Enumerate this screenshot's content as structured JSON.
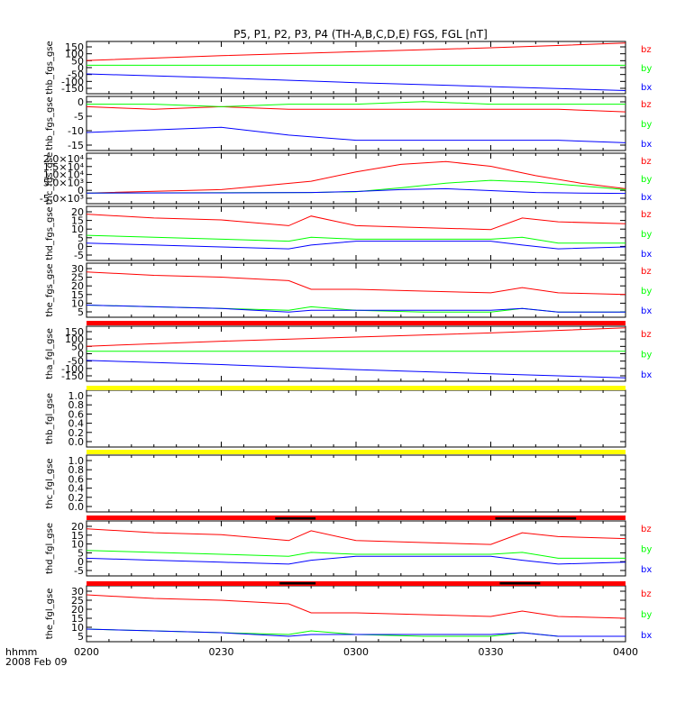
{
  "title": "P5, P1, P2, P3, P4 (TH-A,B,C,D,E) FGS, FGL [nT]",
  "footer": {
    "line1": "hhmm",
    "line2": "2008 Feb 09"
  },
  "x_ticks": [
    "0200",
    "0230",
    "0300",
    "0330",
    "0400"
  ],
  "components": [
    {
      "label": "bz",
      "color": "#ff0000"
    },
    {
      "label": "by",
      "color": "#00ff00"
    },
    {
      "label": "bx",
      "color": "#0000ff"
    }
  ],
  "colors": {
    "bx": "#0000ff",
    "by": "#00ff00",
    "bz": "#ff0000",
    "flag_red": "#ff0000",
    "flag_yellow": "#ffff00",
    "bar": "#000000"
  },
  "panels": [
    {
      "ylabel": "thb_fgs_gse",
      "yticks": [
        "150",
        "100",
        "50",
        "0",
        "-50",
        "-100",
        "-150"
      ]
    },
    {
      "ylabel": "thb_fgs_gse",
      "yticks": [
        "0",
        "-5",
        "-10",
        "-15"
      ]
    },
    {
      "ylabel": "thc_fgs_gse",
      "yticks": [
        "2.0×10⁴",
        "1.5×10⁴",
        "1.0×10⁴",
        "5.0×10³",
        "0",
        "-5.0×10³"
      ]
    },
    {
      "ylabel": "thd_fgs_gse",
      "yticks": [
        "20",
        "15",
        "10",
        "5",
        "0",
        "-5"
      ]
    },
    {
      "ylabel": "the_fgs_gse",
      "yticks": [
        "30",
        "25",
        "20",
        "15",
        "10",
        "5"
      ]
    },
    {
      "ylabel": "tha_fgl_gse",
      "yticks": [
        "150",
        "100",
        "50",
        "0",
        "-50",
        "-100",
        "-150"
      ]
    },
    {
      "ylabel": "thb_fgl_gse",
      "yticks": [
        "1.0",
        "0.8",
        "0.6",
        "0.4",
        "0.2",
        "0.0"
      ]
    },
    {
      "ylabel": "thc_fgl_gse",
      "yticks": [
        "1.0",
        "0.8",
        "0.6",
        "0.4",
        "0.2",
        "0.0"
      ]
    },
    {
      "ylabel": "thd_fgl_gse",
      "yticks": [
        "20",
        "15",
        "10",
        "5",
        "0",
        "-5"
      ]
    },
    {
      "ylabel": "the_fgl_gse",
      "yticks": [
        "30",
        "25",
        "20",
        "15",
        "10",
        "5"
      ]
    }
  ],
  "chart_data": {
    "type": "line",
    "title": "P5, P1, P2, P3, P4 (TH-A,B,C,D,E) FGS, FGL [nT]",
    "x_unit": "hhmm (UT), 2008 Feb 09",
    "xlim": [
      "0200",
      "0400"
    ],
    "panels": [
      {
        "name": "thb_fgs_gse",
        "ylim": [
          -170,
          160
        ],
        "x": [
          "0200",
          "0230",
          "0300",
          "0330",
          "0400"
        ],
        "series": [
          {
            "name": "bz",
            "values": [
              40,
              70,
              95,
              120,
              150
            ]
          },
          {
            "name": "by",
            "values": [
              10,
              10,
              10,
              10,
              10
            ]
          },
          {
            "name": "bx",
            "values": [
              -45,
              -70,
              -100,
              -125,
              -150
            ]
          }
        ]
      },
      {
        "name": "thb_fgs_gse",
        "ylim": [
          -18,
          3
        ],
        "x": [
          "0200",
          "0215",
          "0230",
          "0245",
          "0300",
          "0315",
          "0330",
          "0345",
          "0400"
        ],
        "series": [
          {
            "name": "bz",
            "values": [
              -1,
              -2,
              -1,
              -2,
              -2,
              -2,
              -2,
              -2,
              -3
            ]
          },
          {
            "name": "by",
            "values": [
              0,
              0,
              -1,
              0,
              0,
              1,
              0,
              0,
              0
            ]
          },
          {
            "name": "bx",
            "values": [
              -11,
              -10,
              -9,
              -12,
              -14,
              -14,
              -14,
              -14,
              -15
            ]
          }
        ]
      },
      {
        "name": "thc_fgs_gse",
        "ylim": [
          -6000,
          21000
        ],
        "x": [
          "0200",
          "0230",
          "0250",
          "0300",
          "0310",
          "0320",
          "0330",
          "0340",
          "0350",
          "0400"
        ],
        "series": [
          {
            "name": "bz",
            "values": [
              -300,
              1500,
              6000,
              11000,
              15000,
              16500,
              14000,
              9000,
              5000,
              2000
            ]
          },
          {
            "name": "by",
            "values": [
              -300,
              -100,
              0,
              400,
              2500,
              5000,
              6500,
              5500,
              3500,
              1500
            ]
          },
          {
            "name": "bx",
            "values": [
              -300,
              -200,
              0,
              500,
              1500,
              2000,
              1000,
              0,
              -300,
              -500
            ]
          }
        ]
      },
      {
        "name": "thd_fgs_gse",
        "ylim": [
          -6,
          22
        ],
        "x": [
          "0200",
          "0215",
          "0230",
          "0245",
          "0250",
          "0300",
          "0315",
          "0330",
          "0337",
          "0345",
          "0400"
        ],
        "series": [
          {
            "name": "bz",
            "values": [
              18,
              16,
              15,
              12,
              17,
              12,
              11,
              10,
              16,
              14,
              13
            ]
          },
          {
            "name": "by",
            "values": [
              7,
              6,
              5,
              4,
              6,
              5,
              5,
              5,
              6,
              3,
              3
            ]
          },
          {
            "name": "bx",
            "values": [
              3,
              2,
              1,
              0,
              2,
              4,
              4,
              4,
              2,
              0,
              1
            ]
          }
        ]
      },
      {
        "name": "the_fgs_gse",
        "ylim": [
          2,
          33
        ],
        "x": [
          "0200",
          "0215",
          "0230",
          "0245",
          "0250",
          "0300",
          "0315",
          "0330",
          "0337",
          "0345",
          "0400"
        ],
        "series": [
          {
            "name": "bz",
            "values": [
              28,
              26,
              25,
              23,
              18,
              18,
              17,
              16,
              19,
              16,
              15
            ]
          },
          {
            "name": "by",
            "values": [
              9,
              8,
              7,
              6,
              8,
              6,
              5,
              5,
              7,
              5,
              5
            ]
          },
          {
            "name": "bx",
            "values": [
              9,
              8,
              7,
              5,
              6,
              6,
              6,
              6,
              7,
              5,
              5
            ]
          }
        ]
      },
      {
        "name": "tha_fgl_gse",
        "ylim": [
          -170,
          160
        ],
        "x": [
          "0200",
          "0230",
          "0300",
          "0330",
          "0400"
        ],
        "series": [
          {
            "name": "bz",
            "values": [
              40,
              70,
              95,
              120,
              150
            ]
          },
          {
            "name": "by",
            "values": [
              10,
              10,
              10,
              10,
              10
            ]
          },
          {
            "name": "bx",
            "values": [
              -45,
              -70,
              -100,
              -125,
              -150
            ]
          }
        ]
      },
      {
        "name": "thb_fgl_gse",
        "ylim": [
          -0.1,
          1.1
        ],
        "series": []
      },
      {
        "name": "thc_fgl_gse",
        "ylim": [
          -0.1,
          1.1
        ],
        "series": []
      },
      {
        "name": "thd_fgl_gse",
        "ylim": [
          -6,
          22
        ],
        "x": [
          "0200",
          "0215",
          "0230",
          "0245",
          "0250",
          "0300",
          "0315",
          "0330",
          "0337",
          "0345",
          "0400"
        ],
        "series": [
          {
            "name": "bz",
            "values": [
              18,
              16,
              15,
              12,
              17,
              12,
              11,
              10,
              16,
              14,
              13
            ]
          },
          {
            "name": "by",
            "values": [
              7,
              6,
              5,
              4,
              6,
              5,
              5,
              5,
              6,
              3,
              3
            ]
          },
          {
            "name": "bx",
            "values": [
              3,
              2,
              1,
              0,
              2,
              4,
              4,
              4,
              2,
              0,
              1
            ]
          }
        ]
      },
      {
        "name": "the_fgl_gse",
        "ylim": [
          2,
          33
        ],
        "x": [
          "0200",
          "0215",
          "0230",
          "0245",
          "0250",
          "0300",
          "0315",
          "0330",
          "0337",
          "0345",
          "0400"
        ],
        "series": [
          {
            "name": "bz",
            "values": [
              28,
              26,
              25,
              23,
              18,
              18,
              17,
              16,
              19,
              16,
              15
            ]
          },
          {
            "name": "by",
            "values": [
              9,
              8,
              7,
              6,
              8,
              6,
              5,
              5,
              7,
              5,
              5
            ]
          },
          {
            "name": "bx",
            "values": [
              9,
              8,
              7,
              5,
              6,
              6,
              6,
              6,
              7,
              5,
              5
            ]
          }
        ]
      }
    ],
    "flag_bars": [
      {
        "after_panel": 4,
        "color": "red"
      },
      {
        "after_panel": 5,
        "color": "yellow"
      },
      {
        "after_panel": 6,
        "color": "yellow"
      },
      {
        "after_panel": 7,
        "color": "red"
      },
      {
        "after_panel": 8,
        "color": "red"
      }
    ],
    "mode_bars": [
      {
        "after_panel": 7,
        "spans": [
          [
            "0242",
            "0251"
          ],
          [
            "0331",
            "0349"
          ]
        ]
      },
      {
        "after_panel": 8,
        "spans": [
          [
            "0243",
            "0251"
          ],
          [
            "0332",
            "0341"
          ]
        ]
      }
    ]
  }
}
